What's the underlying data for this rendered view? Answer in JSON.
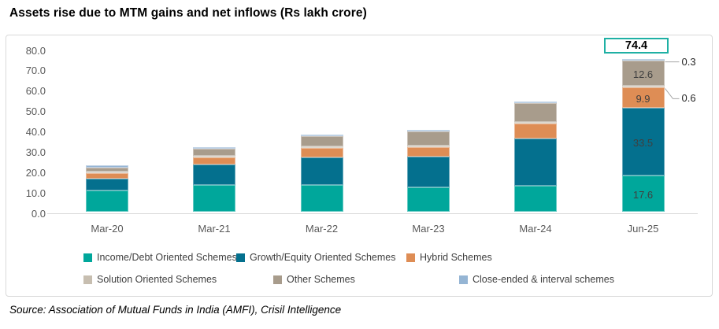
{
  "title": "Assets rise due to MTM gains and net inflows (Rs lakh crore)",
  "source": "Source: Association of Mutual Funds in India (AMFI), Crisil Intelligence",
  "colors": {
    "accent_teal": "#1FB0A4",
    "axis_text": "#595959",
    "label_text": "#3F3F3F",
    "chart_border": "#D9D9D9",
    "leader_line": "#A6A6A6"
  },
  "chart_data": {
    "type": "bar",
    "stacked": true,
    "title": "Assets rise due to MTM gains and net inflows (Rs lakh crore)",
    "xlabel": "",
    "ylabel": "",
    "ylim": [
      0,
      80
    ],
    "yticks": [
      "0.0",
      "10.0",
      "20.0",
      "30.0",
      "40.0",
      "50.0",
      "60.0",
      "70.0",
      "80.0"
    ],
    "grid": false,
    "legend_position": "bottom",
    "categories": [
      "Mar-20",
      "Mar-21",
      "Mar-22",
      "Mar-23",
      "Mar-24",
      "Jun-25"
    ],
    "series": [
      {
        "name": "Income/Debt Oriented Schemes",
        "color": "#00A79B",
        "values": [
          10.3,
          13.3,
          13.0,
          11.8,
          12.6,
          17.6
        ],
        "data_label": "17.6",
        "data_label_placement": "inside"
      },
      {
        "name": "Growth/Equity Oriented Schemes",
        "color": "#04708E",
        "values": [
          5.8,
          9.8,
          13.7,
          15.2,
          23.5,
          33.5
        ],
        "data_label": "33.5",
        "data_label_placement": "inside"
      },
      {
        "name": "Hybrid Schemes",
        "color": "#DE8D55",
        "values": [
          2.9,
          3.4,
          4.8,
          4.8,
          7.2,
          9.9
        ],
        "data_label": "9.9",
        "data_label_placement": "inside"
      },
      {
        "name": "Solution Oriented Schemes",
        "color": "#C7BEB0",
        "values": [
          0.2,
          0.3,
          0.3,
          0.3,
          0.4,
          0.6
        ],
        "data_label": "0.6",
        "data_label_placement": "callout"
      },
      {
        "name": "Other Schemes",
        "color": "#A89C8C",
        "values": [
          1.9,
          3.8,
          5.0,
          6.9,
          9.4,
          12.6
        ],
        "data_label": "12.6",
        "data_label_placement": "inside"
      },
      {
        "name": "Close-ended & interval schemes",
        "color": "#95B5D4",
        "values": [
          1.2,
          0.8,
          0.8,
          0.4,
          0.3,
          0.3
        ],
        "data_label": "0.3",
        "data_label_placement": "callout"
      }
    ],
    "total_label": "74.4",
    "total_label_category": "Jun-25"
  }
}
